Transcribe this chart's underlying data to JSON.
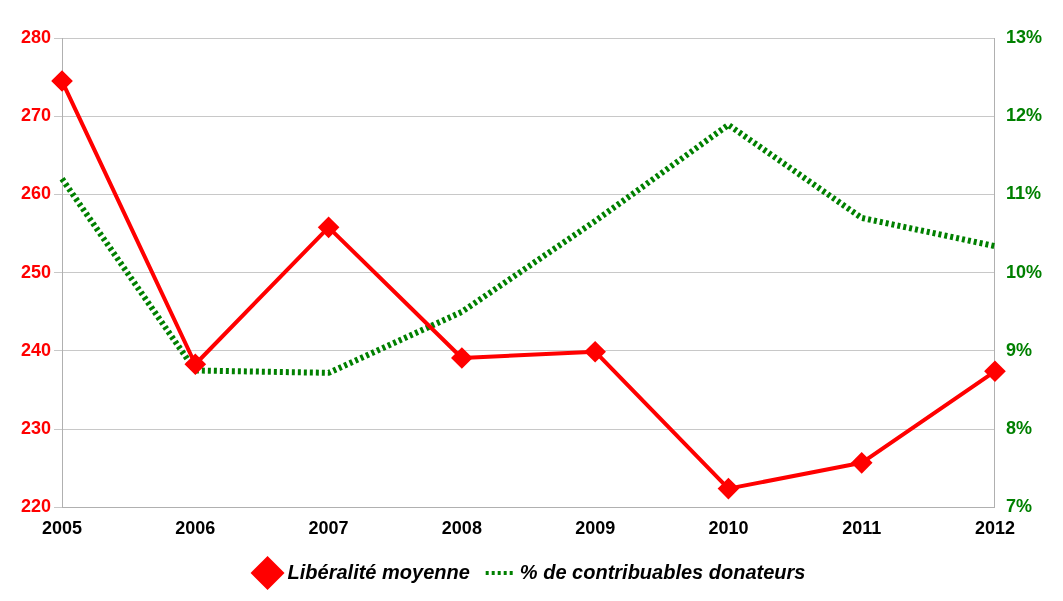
{
  "chart_data": {
    "type": "line",
    "categories": [
      "2005",
      "2006",
      "2007",
      "2008",
      "2009",
      "2010",
      "2011",
      "2012"
    ],
    "series": [
      {
        "name": "Libéralité moyenne",
        "color": "#ff0000",
        "marker": "diamond",
        "line_style": "solid",
        "values": [
          274.5,
          238.3,
          255.8,
          239.1,
          239.9,
          222.4,
          225.7,
          237.4
        ]
      },
      {
        "name": "% de contribuables donateurs",
        "color": "#008000",
        "marker": "none",
        "line_style": "dotted",
        "axis": "y2",
        "values": [
          11.2,
          8.75,
          8.72,
          9.5,
          10.66,
          11.89,
          10.7,
          10.34
        ]
      }
    ],
    "ylim": [
      220,
      280
    ],
    "yticks": [
      220,
      230,
      240,
      250,
      260,
      270,
      280
    ],
    "y2lim": [
      7,
      13
    ],
    "y2ticks": [
      {
        "value": 7,
        "label": "7%"
      },
      {
        "value": 8,
        "label": "8%"
      },
      {
        "value": 9,
        "label": "9%"
      },
      {
        "value": 10,
        "label": "10%"
      },
      {
        "value": 11,
        "label": "11%"
      },
      {
        "value": 12,
        "label": "12%"
      },
      {
        "value": 13,
        "label": "13%"
      }
    ],
    "grid": "y",
    "legend": "bottom"
  }
}
